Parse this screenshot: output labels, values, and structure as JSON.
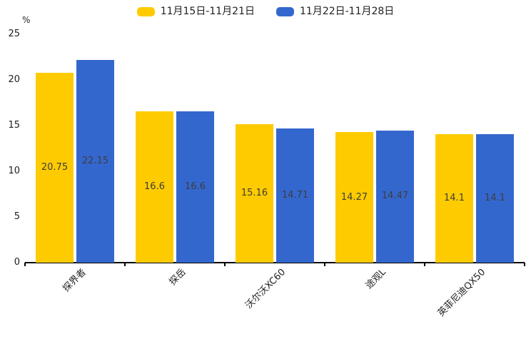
{
  "legend": {
    "items": [
      {
        "label": "11月15日-11月21日",
        "color": "#FECB00"
      },
      {
        "label": "11月22日-11月28日",
        "color": "#3467CE"
      }
    ]
  },
  "chart_data": {
    "type": "bar",
    "title": "",
    "unit_label": "%",
    "categories": [
      "探界者",
      "探岳",
      "沃尔沃XC60",
      "途观L",
      "英菲尼迪QX50"
    ],
    "series": [
      {
        "name": "11月15日-11月21日",
        "color": "#FECB00",
        "values": [
          20.75,
          16.6,
          15.16,
          14.27,
          14.1
        ]
      },
      {
        "name": "11月22日-11月28日",
        "color": "#3467CE",
        "values": [
          22.15,
          16.6,
          14.71,
          14.47,
          14.1
        ]
      }
    ],
    "value_labels": [
      [
        "20.75",
        "16.6",
        "15.16",
        "14.27",
        "14.1"
      ],
      [
        "22.15",
        "16.6",
        "14.71",
        "14.47",
        "14.1"
      ]
    ],
    "ylabel": "%",
    "xlabel": "",
    "ylim": [
      0,
      25
    ],
    "yticks": [
      0,
      5,
      10,
      15,
      20,
      25
    ],
    "grid": false,
    "legend_position": "top",
    "x_label_rotation_deg": 45
  },
  "colors": {
    "axis": "#000000",
    "value_label": "#3d3d3d",
    "tick_label": "#1f1f1f",
    "background": "#ffffff"
  }
}
